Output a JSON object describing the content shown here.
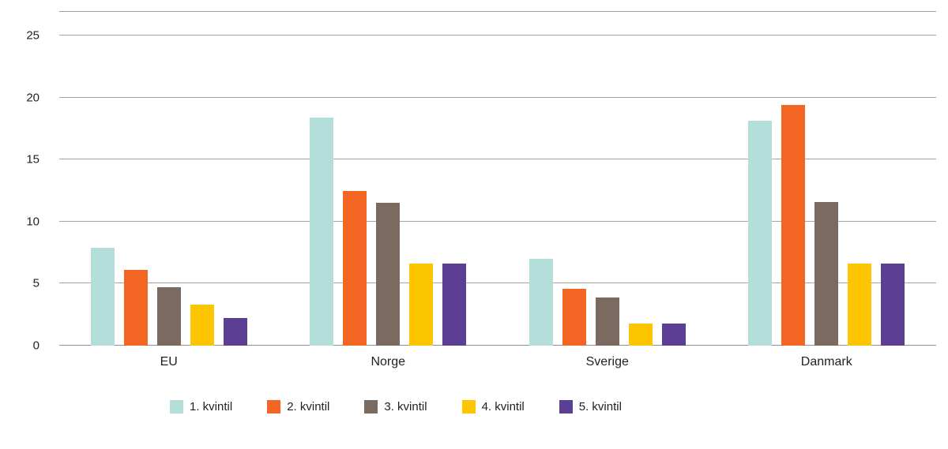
{
  "chart_data": {
    "type": "bar",
    "categories": [
      "EU",
      "Norge",
      "Sverige",
      "Danmark"
    ],
    "series": [
      {
        "name": "1. kvintil",
        "color": "#b4ded9",
        "values": [
          7.9,
          18.4,
          7.0,
          18.1
        ]
      },
      {
        "name": "2. kvintil",
        "color": "#f26522",
        "values": [
          6.1,
          12.5,
          4.6,
          19.4
        ]
      },
      {
        "name": "3. kvintil",
        "color": "#7a6a60",
        "values": [
          4.7,
          11.5,
          3.9,
          11.6
        ]
      },
      {
        "name": "4. kvintil",
        "color": "#fdc500",
        "values": [
          3.3,
          6.6,
          1.8,
          6.6
        ]
      },
      {
        "name": "5. kvintil",
        "color": "#5c3e95",
        "values": [
          2.2,
          6.6,
          1.8,
          6.6
        ]
      }
    ],
    "title": "",
    "xlabel": "",
    "ylabel": "",
    "ylim": [
      0,
      25
    ],
    "yticks": [
      0,
      5,
      10,
      15,
      20,
      25
    ],
    "grid": true,
    "legend_position": "bottom"
  }
}
